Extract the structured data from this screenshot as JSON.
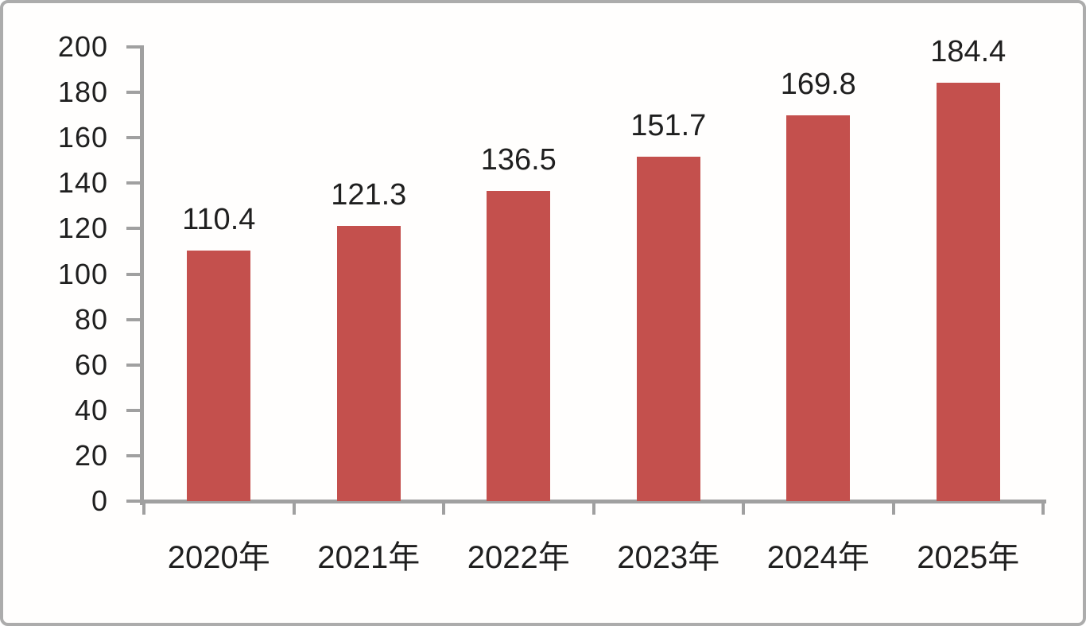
{
  "chart_data": {
    "type": "bar",
    "title": "",
    "xlabel": "",
    "ylabel": "",
    "categories": [
      "2020年",
      "2021年",
      "2022年",
      "2023年",
      "2024年",
      "2025年"
    ],
    "values": [
      110.4,
      121.3,
      136.5,
      151.7,
      169.8,
      184.4
    ],
    "value_labels": [
      "110.4",
      "121.3",
      "136.5",
      "151.7",
      "169.8",
      "184.4"
    ],
    "ylim": [
      0,
      200
    ],
    "ytick_interval": 20,
    "yticks": [
      "0",
      "20",
      "40",
      "60",
      "80",
      "100",
      "120",
      "140",
      "160",
      "180",
      "200"
    ],
    "grid": false,
    "legend": false,
    "bar_color": "#C4504D",
    "axis_color": "#A0A0A0",
    "label_color": "#1F1F1F"
  }
}
